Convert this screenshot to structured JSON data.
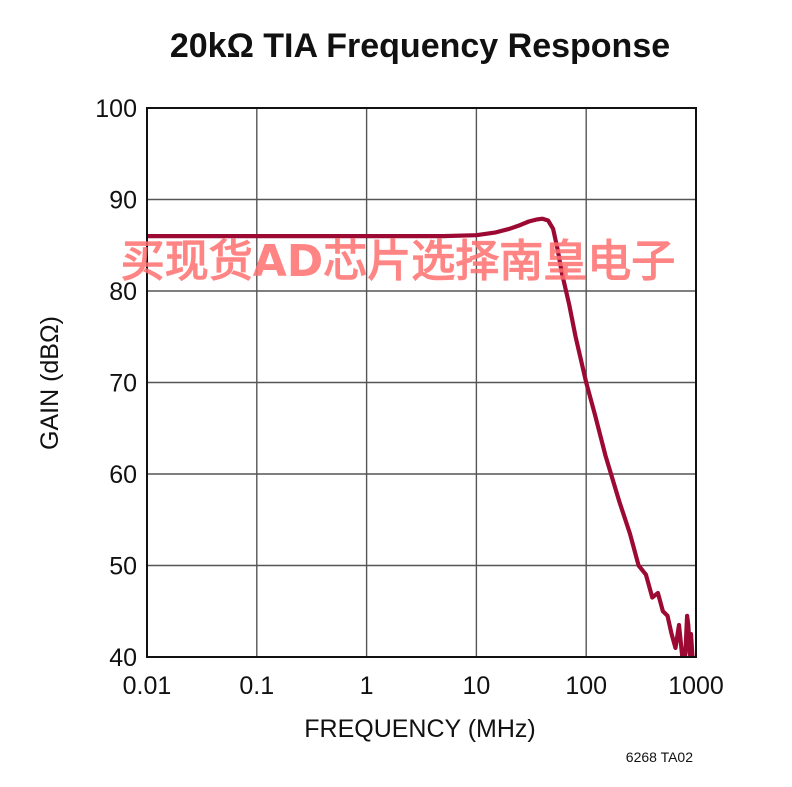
{
  "chart_data": {
    "type": "line",
    "title": "20kΩ TIA Frequency Response",
    "xlabel": "FREQUENCY (MHz)",
    "ylabel": "GAIN (dBΩ)",
    "x_scale": "log",
    "xlim": [
      0.01,
      1000
    ],
    "ylim": [
      40,
      100
    ],
    "x_ticks": [
      0.01,
      0.1,
      1,
      10,
      100,
      1000
    ],
    "x_tick_labels": [
      "0.01",
      "0.1",
      "1",
      "10",
      "100",
      "1000"
    ],
    "y_ticks": [
      40,
      50,
      60,
      70,
      80,
      90,
      100
    ],
    "y_tick_labels": [
      "40",
      "50",
      "60",
      "70",
      "80",
      "90",
      "100"
    ],
    "grid": true,
    "series": [
      {
        "color": "#9c0a33",
        "x": [
          0.01,
          0.1,
          1,
          5,
          10,
          15,
          20,
          25,
          30,
          35,
          40,
          45,
          50,
          55,
          60,
          70,
          80,
          100,
          120,
          150,
          200,
          250,
          300,
          350,
          400,
          450,
          500,
          550,
          600,
          650,
          700,
          750,
          780,
          800,
          830,
          850,
          880,
          900,
          930
        ],
        "y": [
          86.0,
          86.0,
          86.0,
          86.0,
          86.1,
          86.4,
          86.8,
          87.2,
          87.6,
          87.8,
          87.9,
          87.7,
          86.8,
          84.5,
          82.0,
          78.5,
          75.0,
          70.0,
          66.5,
          62.0,
          57.0,
          53.5,
          50.0,
          49.0,
          46.5,
          47.0,
          45.0,
          44.5,
          42.5,
          41.0,
          43.5,
          40.0,
          39.6,
          40.5,
          44.5,
          43.5,
          40.2,
          42.5,
          40.0
        ]
      }
    ],
    "annotations": [
      "6268 TA02"
    ]
  },
  "watermark": "买现货AD芯片选择南皇电子"
}
